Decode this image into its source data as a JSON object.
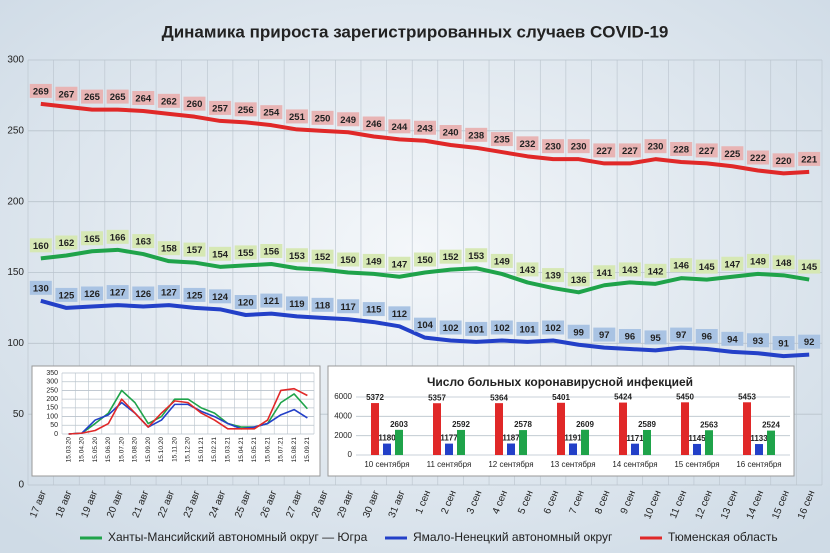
{
  "chart_data": [
    {
      "type": "line",
      "title": "Динамика прироста зарегистрированных случаев COVID-19",
      "categories": [
        "17 авг",
        "18 авг",
        "19 авг",
        "20 авг",
        "21 авг",
        "22 авг",
        "23 авг",
        "24 авг",
        "25 авг",
        "26 авг",
        "27 авг",
        "28 авг",
        "29 авг",
        "30 авг",
        "31 авг",
        "1 сен",
        "2 сен",
        "3 сен",
        "4 сен",
        "5 сен",
        "6 сен",
        "7 сен",
        "8 сен",
        "9 сен",
        "10 сен",
        "11 сен",
        "12 сен",
        "13 сен",
        "14 сен",
        "15 сен",
        "16 сен"
      ],
      "series": [
        {
          "name": "Ханты-Мансийский автономный округ — Югра",
          "color": "#1fa34a",
          "label_color": "#d6e8b4",
          "values": [
            160,
            162,
            165,
            166,
            163,
            158,
            157,
            154,
            155,
            156,
            153,
            152,
            150,
            149,
            147,
            150,
            152,
            153,
            149,
            143,
            139,
            136,
            141,
            143,
            142,
            146,
            145,
            147,
            149,
            148,
            145
          ]
        },
        {
          "name": "Ямало-Ненецкий автономный округ",
          "color": "#2340c8",
          "label_color": "#a9c3e3",
          "values": [
            130,
            125,
            126,
            127,
            126,
            127,
            125,
            124,
            120,
            121,
            119,
            118,
            117,
            115,
            112,
            104,
            102,
            101,
            102,
            101,
            102,
            99,
            97,
            96,
            95,
            97,
            96,
            94,
            93,
            91,
            92
          ]
        },
        {
          "name": "Тюменская область",
          "color": "#e02828",
          "label_color": "#e8b4b4",
          "values": [
            269,
            267,
            265,
            265,
            264,
            262,
            260,
            257,
            256,
            254,
            251,
            250,
            249,
            246,
            244,
            243,
            240,
            238,
            235,
            232,
            230,
            230,
            227,
            227,
            230,
            228,
            227,
            225,
            222,
            220,
            221
          ]
        }
      ],
      "ylim": [
        0,
        300
      ],
      "yticks": [
        0,
        50,
        100,
        150,
        200,
        250,
        300
      ],
      "grid": true,
      "legend": "bottom"
    },
    {
      "type": "line",
      "categories": [
        "15.03.20",
        "15.04.20",
        "15.05.20",
        "15.06.20",
        "15.07.20",
        "15.08.20",
        "15.09.20",
        "15.10.20",
        "15.11.20",
        "15.12.20",
        "15.01.21",
        "15.02.21",
        "15.03.21",
        "15.04.21",
        "15.05.21",
        "15.06.21",
        "15.07.21",
        "15.08.21",
        "15.09.21"
      ],
      "series": [
        {
          "color": "#1fa34a",
          "values": [
            0,
            5,
            60,
            120,
            250,
            180,
            60,
            100,
            200,
            200,
            150,
            120,
            60,
            40,
            40,
            60,
            180,
            230,
            145
          ]
        },
        {
          "color": "#2340c8",
          "values": [
            0,
            5,
            80,
            110,
            180,
            120,
            40,
            80,
            170,
            170,
            130,
            100,
            60,
            30,
            40,
            60,
            110,
            140,
            92
          ]
        },
        {
          "color": "#e02828",
          "values": [
            0,
            5,
            20,
            60,
            200,
            120,
            40,
            120,
            190,
            180,
            120,
            80,
            30,
            30,
            30,
            80,
            250,
            260,
            221
          ]
        }
      ],
      "ylim": [
        0,
        350
      ],
      "yticks": [
        0,
        50,
        100,
        150,
        200,
        250,
        300,
        350
      ],
      "grid": true
    },
    {
      "type": "bar",
      "title": "Число больных коронавирусной инфекцией",
      "categories": [
        "10 сентября",
        "11 сентября",
        "12 сентября",
        "13 сентября",
        "14 сентября",
        "15 сентября",
        "16 сентября"
      ],
      "series": [
        {
          "color": "#e02828",
          "values": [
            5372,
            5357,
            5364,
            5401,
            5424,
            5450,
            5453
          ]
        },
        {
          "color": "#2340c8",
          "values": [
            1180,
            1177,
            1187,
            1191,
            1171,
            1145,
            1133
          ]
        },
        {
          "color": "#1fa34a",
          "values": [
            2603,
            2592,
            2578,
            2609,
            2589,
            2563,
            2524
          ]
        }
      ],
      "ylim": [
        0,
        6000
      ],
      "yticks": [
        0,
        2000,
        4000,
        6000
      ],
      "grid": true
    }
  ]
}
